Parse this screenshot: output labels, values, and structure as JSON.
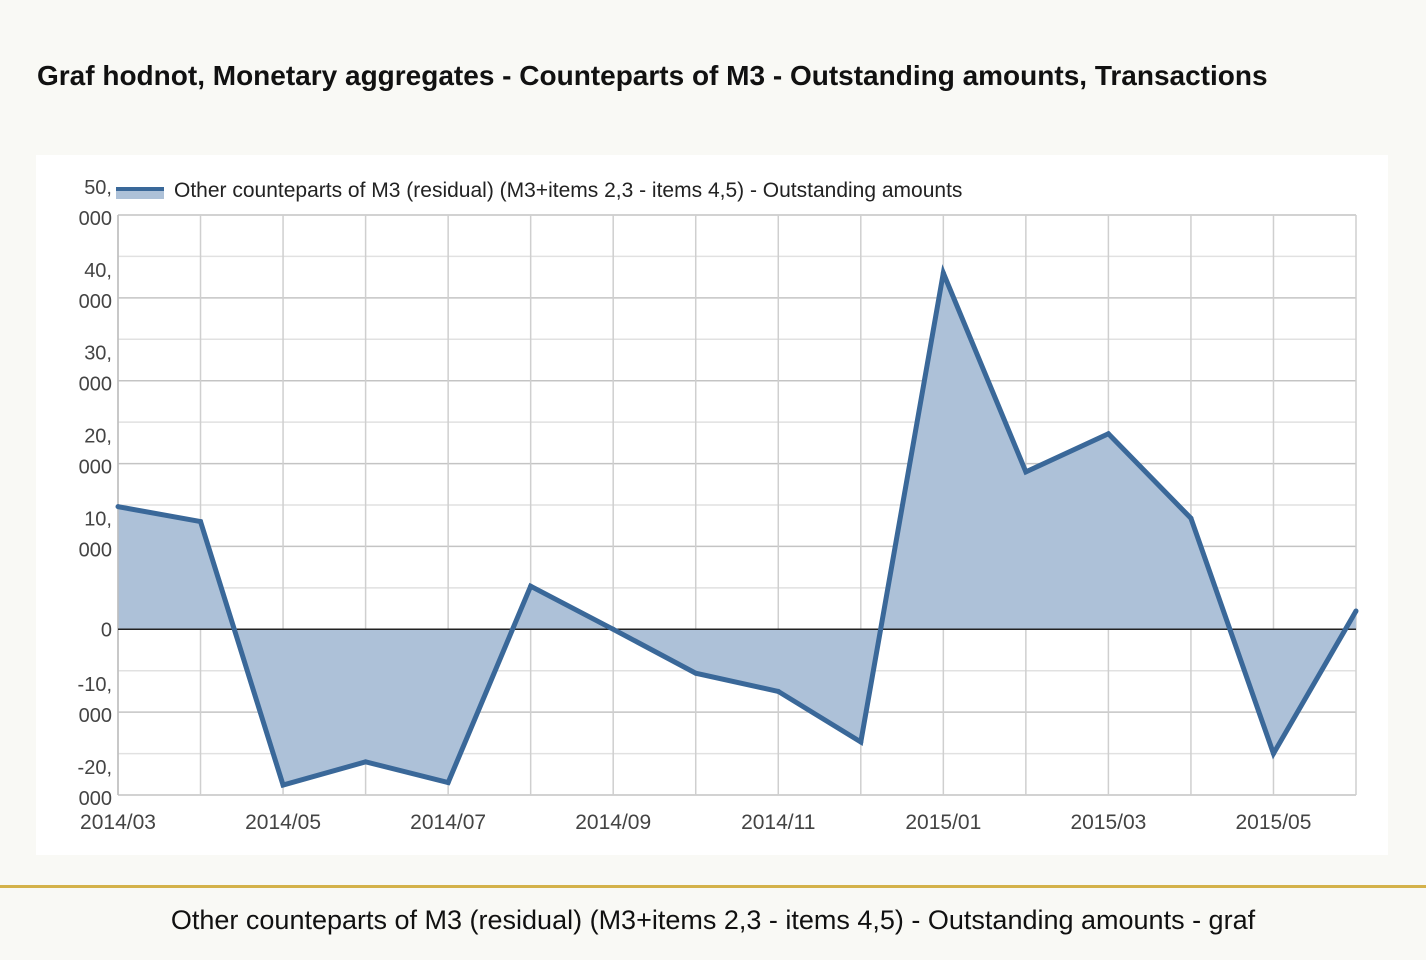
{
  "page": {
    "title": "Graf hodnot, Monetary aggregates - Counteparts of M3 - Outstanding amounts, Transactions",
    "caption": "Other counteparts of M3 (residual) (M3+items 2,3 - items 4,5) - Outstanding amounts - graf"
  },
  "colors": {
    "line": "#3a6899",
    "fill": "#adc1d8",
    "grid": "#c8c8c8",
    "zero_line": "#222222",
    "accent_divider": "#d4b24a"
  },
  "chart_data": {
    "type": "area",
    "title": "Graf hodnot, Monetary aggregates - Counteparts of M3 - Outstanding amounts, Transactions",
    "x": [
      "2014/03",
      "2014/04",
      "2014/05",
      "2014/06",
      "2014/07",
      "2014/08",
      "2014/09",
      "2014/10",
      "2014/11",
      "2014/12",
      "2015/01",
      "2015/02",
      "2015/03",
      "2015/04",
      "2015/05",
      "2015/06"
    ],
    "x_tick_labels": [
      "2014/03",
      "2014/05",
      "2014/07",
      "2014/09",
      "2014/11",
      "2015/01",
      "2015/03",
      "2015/05"
    ],
    "series": [
      {
        "name": "Other counteparts of M3 (residual) (M3+items 2,3 - items 4,5) - Outstanding amounts",
        "values": [
          14800,
          13000,
          -18800,
          -16000,
          -18500,
          5200,
          0,
          -5300,
          -7500,
          -13600,
          43000,
          19000,
          23600,
          13400,
          -15000,
          2200
        ]
      }
    ],
    "y_ticks": [
      {
        "value": 50000,
        "label": [
          "50,",
          "000"
        ]
      },
      {
        "value": 40000,
        "label": [
          "40,",
          "000"
        ]
      },
      {
        "value": 30000,
        "label": [
          "30,",
          "000"
        ]
      },
      {
        "value": 20000,
        "label": [
          "20,",
          "000"
        ]
      },
      {
        "value": 10000,
        "label": [
          "10,",
          "000"
        ]
      },
      {
        "value": 0,
        "label": [
          "0"
        ]
      },
      {
        "value": -10000,
        "label": [
          "-10,",
          "000"
        ]
      },
      {
        "value": -20000,
        "label": [
          "-20,",
          "000"
        ]
      }
    ],
    "ylim": [
      -20000,
      50000
    ],
    "grid": true,
    "legend_position": "top-left"
  }
}
